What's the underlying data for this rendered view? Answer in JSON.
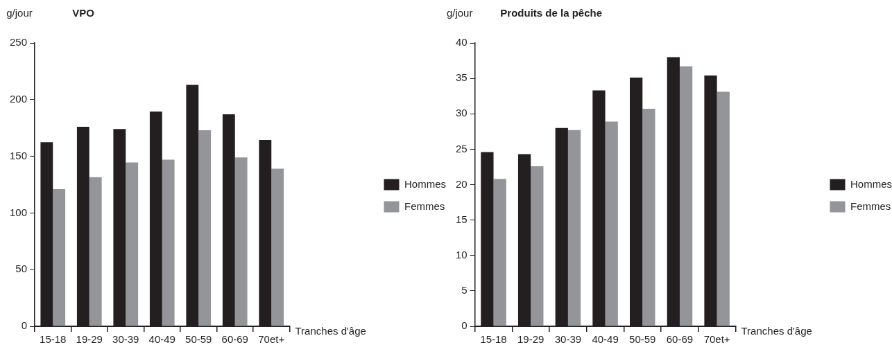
{
  "chart_data": [
    {
      "type": "bar",
      "title": "VPO",
      "ylabel": "g/jour",
      "xlabel": "Tranches d'âge",
      "categories": [
        "15-18",
        "19-29",
        "30-39",
        "40-49",
        "50-59",
        "60-69",
        "70et+"
      ],
      "series": [
        {
          "name": "Hommes",
          "color": "#231f20",
          "values": [
            162.5,
            176,
            174,
            189.5,
            213,
            187,
            164.5
          ]
        },
        {
          "name": "Femmes",
          "color": "#939598",
          "values": [
            121,
            131.5,
            144.5,
            147,
            173,
            149,
            139
          ]
        }
      ],
      "ylim": [
        0,
        250
      ],
      "yticks": [
        0,
        50,
        100,
        150,
        200,
        250
      ],
      "grid": false,
      "legend": "right"
    },
    {
      "type": "bar",
      "title": "Produits de la pêche",
      "ylabel": "g/jour",
      "xlabel": "Tranches d'âge",
      "categories": [
        "15-18",
        "19-29",
        "30-39",
        "40-49",
        "50-59",
        "60-69",
        "70et+"
      ],
      "series": [
        {
          "name": "Hommes",
          "color": "#231f20",
          "values": [
            24.6,
            24.3,
            28,
            33.3,
            35.1,
            38,
            35.4
          ]
        },
        {
          "name": "Femmes",
          "color": "#939598",
          "values": [
            20.8,
            22.6,
            27.7,
            28.9,
            30.7,
            36.7,
            33.1
          ]
        }
      ],
      "ylim": [
        0,
        40
      ],
      "yticks": [
        0,
        5,
        10,
        15,
        20,
        25,
        30,
        35,
        40
      ],
      "grid": false,
      "legend": "right"
    }
  ]
}
